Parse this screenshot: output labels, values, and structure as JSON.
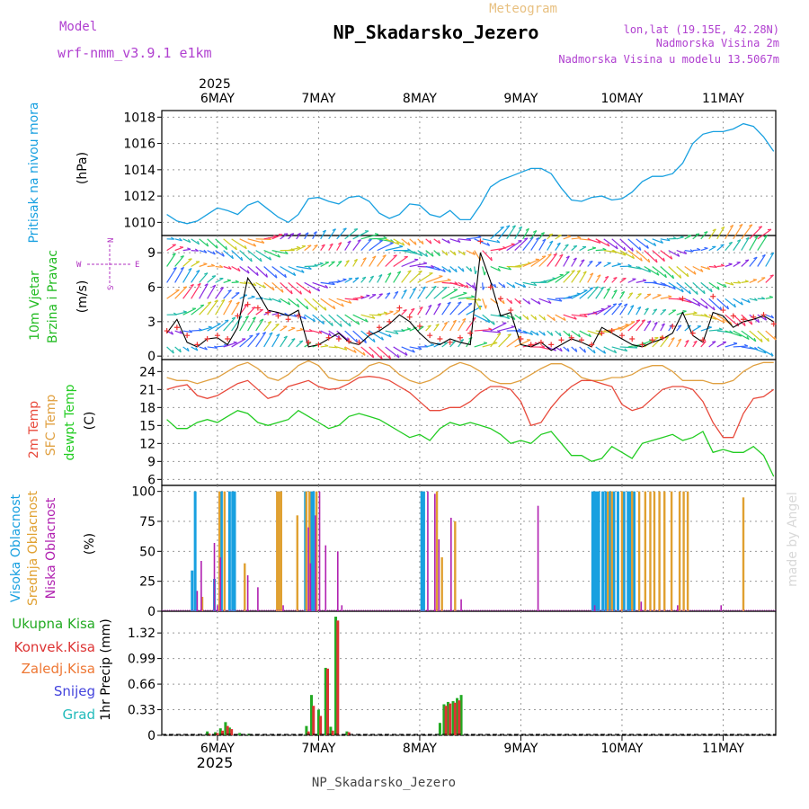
{
  "header": {
    "model_label": "Model",
    "model_name": "wrf-nmm_v3.9.1 e1km",
    "subtitle": "Meteogram",
    "title": "NP_Skadarsko_Jezero",
    "location": "lon,lat (19.15E, 42.28N)",
    "elevation": "Nadmorska Visina 2m",
    "model_elevation": "Nadmorska Visina u modelu 13.5067m"
  },
  "footer": {
    "station": "NP_Skadarsko_Jezero",
    "credit": "made by Angel"
  },
  "colors": {
    "pressure": "#18a0e0",
    "wind_label": "#22bb22",
    "temp2m": "#e84a3c",
    "sfc": "#e0a040",
    "dewpt": "#22cc22",
    "high_cloud": "#18a0e0",
    "mid_cloud": "#e0a030",
    "low_cloud": "#b020b0",
    "total_precip": "#22aa22",
    "conv_precip": "#dd3333",
    "frozen_precip": "#ee7733",
    "snow": "#4444dd",
    "graupel": "#22bbbb",
    "wind_speed": "#000000",
    "wind_gust": "#ee3333",
    "wind_rose": "#b030c0"
  },
  "time_axis": {
    "year": "2025",
    "labels": [
      "6MAY",
      "7MAY",
      "8MAY",
      "9MAY",
      "10MAY",
      "11MAY"
    ]
  },
  "wind_rose": {
    "n": "N",
    "s": "S",
    "w": "W",
    "e": "E"
  },
  "chart_data": [
    {
      "type": "line",
      "panel": "pressure",
      "ylabel_1": "Pritisak na nivou mora",
      "ylabel_2": "(hPa)",
      "ylim": [
        1009,
        1018.5
      ],
      "yticks": [
        "1010",
        "1012",
        "1014",
        "1016",
        "1018"
      ],
      "x": [
        -0.5,
        -0.4,
        -0.3,
        -0.2,
        -0.1,
        0.0,
        0.1,
        0.2,
        0.3,
        0.4,
        0.5,
        0.6,
        0.7,
        0.8,
        0.9,
        1.0,
        1.1,
        1.2,
        1.3,
        1.4,
        1.5,
        1.6,
        1.7,
        1.8,
        1.9,
        2.0,
        2.1,
        2.2,
        2.3,
        2.4,
        2.5,
        2.6,
        2.7,
        2.8,
        2.9,
        3.0,
        3.1,
        3.2,
        3.3,
        3.4,
        3.5,
        3.6,
        3.7,
        3.8,
        3.9,
        4.0,
        4.1,
        4.2,
        4.3,
        4.4,
        4.5,
        4.6,
        4.7,
        4.8,
        4.9,
        5.0,
        5.1,
        5.2,
        5.3,
        5.4,
        5.5
      ],
      "series": [
        {
          "name": "",
          "values": [
            1010.6,
            1010.1,
            1009.9,
            1010.1,
            1010.6,
            1011.1,
            1010.9,
            1010.6,
            1011.3,
            1011.6,
            1011.0,
            1010.4,
            1010.0,
            1010.6,
            1011.8,
            1011.9,
            1011.6,
            1011.4,
            1011.9,
            1012.0,
            1011.6,
            1010.7,
            1010.3,
            1010.6,
            1011.4,
            1011.3,
            1010.6,
            1010.4,
            1010.9,
            1010.2,
            1010.2,
            1011.3,
            1012.7,
            1013.2,
            1013.5,
            1013.8,
            1014.1,
            1014.1,
            1013.7,
            1012.6,
            1011.7,
            1011.6,
            1011.9,
            1012.0,
            1011.7,
            1011.8,
            1012.3,
            1013.1,
            1013.5,
            1013.5,
            1013.7,
            1014.5,
            1016.0,
            1016.7,
            1016.9,
            1016.9,
            1017.1,
            1017.5,
            1017.3,
            1016.5,
            1015.4
          ]
        }
      ]
    },
    {
      "type": "line",
      "panel": "wind",
      "ylabel_1": "10m Vjetar",
      "ylabel_1b": "Brzina i Pravac",
      "ylabel_2": "(m/s)",
      "ylim": [
        -0.3,
        10.5
      ],
      "yticks": [
        "0",
        "3",
        "6",
        "9"
      ],
      "x": [
        -0.5,
        -0.4,
        -0.3,
        -0.2,
        -0.1,
        0.0,
        0.1,
        0.2,
        0.3,
        0.4,
        0.5,
        0.6,
        0.7,
        0.8,
        0.9,
        1.0,
        1.1,
        1.2,
        1.3,
        1.4,
        1.5,
        1.6,
        1.7,
        1.8,
        1.9,
        2.0,
        2.1,
        2.2,
        2.3,
        2.4,
        2.5,
        2.6,
        2.7,
        2.8,
        2.9,
        3.0,
        3.1,
        3.2,
        3.3,
        3.4,
        3.5,
        3.6,
        3.7,
        3.8,
        3.9,
        4.0,
        4.1,
        4.2,
        4.3,
        4.4,
        4.5,
        4.6,
        4.7,
        4.8,
        4.9,
        5.0,
        5.1,
        5.2,
        5.3,
        5.4,
        5.5
      ],
      "series": [
        {
          "name": "",
          "values": [
            2.0,
            3.2,
            1.2,
            0.8,
            1.5,
            1.6,
            1.0,
            2.5,
            6.8,
            5.5,
            4.0,
            3.8,
            3.5,
            4.0,
            0.8,
            1.0,
            1.5,
            2.0,
            1.2,
            1.0,
            1.8,
            2.2,
            2.8,
            3.6,
            3.0,
            2.0,
            1.2,
            1.0,
            1.5,
            1.2,
            1.0,
            9.0,
            6.5,
            3.5,
            3.8,
            1.0,
            0.8,
            1.2,
            0.5,
            1.0,
            1.5,
            1.2,
            0.8,
            2.5,
            2.0,
            1.5,
            1.0,
            0.8,
            1.2,
            1.5,
            2.0,
            3.8,
            1.8,
            1.2,
            3.8,
            3.5,
            2.5,
            3.0,
            3.2,
            3.5,
            3.0
          ]
        },
        {
          "name": "",
          "values": [
            2.2,
            2.5,
            1.8,
            1.0,
            1.5,
            1.8,
            1.5,
            3.5,
            4.5,
            4.2,
            3.8,
            3.5,
            3.2,
            3.5,
            1.2,
            1.0,
            1.6,
            1.5,
            1.3,
            1.2,
            2.0,
            2.5,
            3.0,
            4.2,
            3.4,
            2.6,
            1.8,
            1.5,
            1.2,
            1.6,
            2.0,
            10.0,
            6.0,
            5.0,
            4.0,
            1.5,
            1.0,
            1.2,
            1.0,
            1.4,
            1.6,
            1.4,
            1.0,
            2.0,
            2.2,
            1.8,
            1.5,
            1.0,
            1.4,
            1.6,
            2.6,
            5.0,
            2.0,
            1.4,
            5.2,
            4.0,
            3.5,
            3.2,
            3.4,
            3.6,
            2.8
          ]
        }
      ]
    },
    {
      "type": "line",
      "panel": "temperature",
      "ylabel_1": "2m Temp",
      "ylabel_1b": "SFC Temp",
      "ylabel_1c": "dewpt Temp",
      "ylabel_2": "(C)",
      "ylim": [
        5,
        26
      ],
      "yticks": [
        "6",
        "9",
        "12",
        "15",
        "18",
        "21",
        "24"
      ],
      "x": [
        -0.5,
        -0.4,
        -0.3,
        -0.2,
        -0.1,
        0.0,
        0.1,
        0.2,
        0.3,
        0.4,
        0.5,
        0.6,
        0.7,
        0.8,
        0.9,
        1.0,
        1.1,
        1.2,
        1.3,
        1.4,
        1.5,
        1.6,
        1.7,
        1.8,
        1.9,
        2.0,
        2.1,
        2.2,
        2.3,
        2.4,
        2.5,
        2.6,
        2.7,
        2.8,
        2.9,
        3.0,
        3.1,
        3.2,
        3.3,
        3.4,
        3.5,
        3.6,
        3.7,
        3.8,
        3.9,
        4.0,
        4.1,
        4.2,
        4.3,
        4.4,
        4.5,
        4.6,
        4.7,
        4.8,
        4.9,
        5.0,
        5.1,
        5.2,
        5.3,
        5.4,
        5.5
      ],
      "series": [
        {
          "name": "",
          "values": [
            21.0,
            21.5,
            21.8,
            20.0,
            19.5,
            20.0,
            21.0,
            22.0,
            22.5,
            21.0,
            19.5,
            20.0,
            21.5,
            22.0,
            22.5,
            21.5,
            21.0,
            21.2,
            22.0,
            23.0,
            23.2,
            23.0,
            22.5,
            21.5,
            20.5,
            19.0,
            17.5,
            17.5,
            18.0,
            18.0,
            19.0,
            20.5,
            21.5,
            21.5,
            21.0,
            19.0,
            15.0,
            15.5,
            18.0,
            20.0,
            21.5,
            22.5,
            22.5,
            22.0,
            21.5,
            18.5,
            17.5,
            18.0,
            19.5,
            21.0,
            21.5,
            21.5,
            21.0,
            19.0,
            15.5,
            13.0,
            13.0,
            17.0,
            19.5,
            19.8,
            21.0
          ]
        },
        {
          "name": "",
          "values": [
            23.0,
            22.5,
            22.5,
            22.0,
            22.5,
            23.0,
            24.0,
            25.0,
            25.5,
            24.5,
            23.0,
            22.5,
            23.5,
            25.0,
            25.8,
            25.0,
            23.0,
            22.5,
            22.5,
            23.5,
            25.0,
            25.5,
            25.0,
            23.5,
            22.5,
            22.0,
            22.5,
            23.5,
            24.8,
            25.5,
            25.0,
            24.0,
            22.5,
            22.0,
            22.0,
            22.5,
            23.5,
            24.5,
            25.3,
            25.3,
            24.5,
            23.0,
            22.5,
            22.5,
            23.0,
            23.0,
            23.5,
            24.5,
            25.0,
            25.0,
            24.0,
            22.5,
            22.5,
            22.5,
            22.0,
            22.0,
            22.5,
            24.0,
            25.0,
            25.5,
            25.5
          ]
        },
        {
          "name": "",
          "values": [
            16.0,
            14.5,
            14.5,
            15.5,
            16.0,
            15.5,
            16.5,
            17.5,
            17.0,
            15.5,
            15.0,
            15.5,
            16.0,
            17.5,
            16.5,
            15.5,
            14.5,
            15.0,
            16.5,
            17.0,
            16.5,
            16.0,
            15.0,
            14.0,
            13.0,
            13.5,
            12.5,
            14.5,
            15.5,
            15.0,
            15.5,
            15.0,
            14.5,
            13.5,
            12.0,
            12.5,
            12.0,
            13.5,
            14.0,
            12.0,
            10.0,
            10.0,
            9.0,
            9.5,
            11.5,
            10.5,
            9.5,
            12.0,
            12.5,
            13.0,
            13.5,
            12.5,
            13.0,
            14.0,
            10.5,
            11.0,
            10.5,
            10.5,
            11.5,
            10.0,
            6.5
          ]
        }
      ]
    },
    {
      "type": "bar",
      "panel": "clouds",
      "ylabel_1": "Visoka Oblacnost",
      "ylabel_1b": "Srednja Oblacnost",
      "ylabel_1c": "Niska Oblacnost",
      "ylabel_2": "(%)",
      "ylim": [
        0,
        105
      ],
      "yticks": [
        "0",
        "25",
        "50",
        "75",
        "100"
      ],
      "series": [
        {
          "name": "",
          "x": [
            -0.25,
            -0.22,
            -0.03,
            0.04,
            0.12,
            0.15,
            0.17,
            0.87,
            0.93,
            0.95,
            2.02,
            2.04,
            3.71,
            3.73,
            3.75,
            3.77,
            3.81,
            3.84,
            3.88,
            3.92,
            3.96,
            4.02,
            4.06,
            4.08,
            4.12
          ],
          "values": [
            34,
            100,
            27,
            100,
            100,
            100,
            100,
            100,
            100,
            100,
            100,
            100,
            100,
            100,
            100,
            100,
            100,
            100,
            100,
            100,
            100,
            100,
            100,
            100,
            100
          ]
        },
        {
          "name": "",
          "x": [
            -0.15,
            0.02,
            0.07,
            0.27,
            0.59,
            0.61,
            0.63,
            0.79,
            0.88,
            0.91,
            0.98,
            2.17,
            2.22,
            2.35,
            3.86,
            3.9,
            4.0,
            4.1,
            4.17,
            4.23,
            4.28,
            4.32,
            4.37,
            4.42,
            4.49,
            4.57,
            4.61,
            4.65,
            5.2
          ],
          "values": [
            12,
            100,
            100,
            40,
            100,
            100,
            100,
            80,
            100,
            100,
            100,
            100,
            45,
            75,
            100,
            100,
            100,
            100,
            100,
            100,
            100,
            100,
            100,
            100,
            100,
            100,
            100,
            100,
            95
          ]
        },
        {
          "name": "",
          "x": [
            -0.2,
            -0.16,
            -0.03,
            0.0,
            0.03,
            0.3,
            0.4,
            0.65,
            0.9,
            0.92,
            0.97,
            1.01,
            1.07,
            1.19,
            1.23,
            2.08,
            2.15,
            2.19,
            2.31,
            2.41,
            3.17,
            3.73,
            4.19,
            4.55,
            4.98
          ],
          "values": [
            17,
            42,
            57,
            5,
            45,
            30,
            20,
            5,
            70,
            40,
            80,
            100,
            55,
            50,
            5,
            100,
            98,
            60,
            78,
            10,
            88,
            5,
            8,
            5,
            5
          ]
        }
      ]
    },
    {
      "type": "bar",
      "panel": "precipitation",
      "ylabel_2": "1hr Precip (mm)",
      "legend": [
        "Ukupna Kisa",
        "Konvek.Kisa",
        "Zaledj.Kisa",
        "Snijeg",
        "Grad"
      ],
      "ylim": [
        0,
        1.6
      ],
      "yticks": [
        "0",
        "0.33",
        "0.66",
        "0.99",
        "1.32"
      ],
      "series": [
        {
          "name": "Ukupna Kisa",
          "x": [
            -0.1,
            -0.02,
            0.03,
            0.08,
            0.12,
            0.22,
            0.31,
            0.88,
            0.93,
            1.0,
            1.07,
            1.12,
            1.17,
            1.28,
            2.2,
            2.24,
            2.28,
            2.33,
            2.37,
            2.41
          ],
          "values": [
            0.05,
            0.04,
            0.09,
            0.17,
            0.1,
            0.03,
            0.02,
            0.12,
            0.52,
            0.33,
            0.87,
            0.11,
            1.53,
            0.05,
            0.16,
            0.4,
            0.43,
            0.44,
            0.48,
            0.52
          ]
        },
        {
          "name": "Konvek.Kisa",
          "x": [
            -0.08,
            0.0,
            0.05,
            0.1,
            0.14,
            0.9,
            0.95,
            1.02,
            1.09,
            1.14,
            1.19,
            1.3,
            2.26,
            2.3,
            2.35,
            2.39,
            2.43
          ],
          "values": [
            0.02,
            0.03,
            0.06,
            0.12,
            0.08,
            0.05,
            0.38,
            0.25,
            0.86,
            0.06,
            1.48,
            0.04,
            0.38,
            0.41,
            0.42,
            0.45,
            0.0
          ]
        }
      ]
    }
  ]
}
